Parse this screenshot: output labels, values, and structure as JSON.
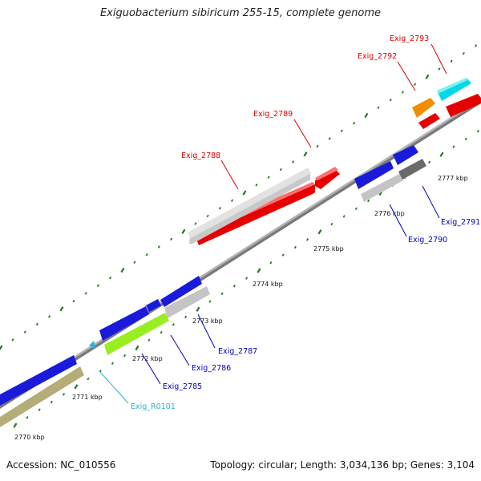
{
  "title": "Exiguobacterium sibiricum 255-15, complete genome",
  "footer": {
    "accession": "Accession: NC_010556",
    "summary": "Topology: circular; Length: 3,034,136 bp; Genes: 3,104"
  },
  "colors": {
    "backbone": "#8c8c8c",
    "tick": "#1f7a1f",
    "red_label": "#e00000",
    "blue_label": "#0000c0",
    "cyan_label": "#2ab0d0"
  },
  "scale_labels": [
    "2770 kbp",
    "2771 kbp",
    "2772 kbp",
    "2773 kbp",
    "2774 kbp",
    "2775 kbp",
    "2776 kbp",
    "2777 kbp"
  ],
  "genes": [
    {
      "id": "Exig_2788",
      "color": "red"
    },
    {
      "id": "Exig_2789",
      "color": "red"
    },
    {
      "id": "Exig_2792",
      "color": "red"
    },
    {
      "id": "Exig_2793",
      "color": "red"
    },
    {
      "id": "Exig_2791",
      "color": "blue"
    },
    {
      "id": "Exig_2790",
      "color": "blue"
    },
    {
      "id": "Exig_2787",
      "color": "blue"
    },
    {
      "id": "Exig_2786",
      "color": "blue"
    },
    {
      "id": "Exig_2785",
      "color": "blue"
    },
    {
      "id": "Exig_R0101",
      "color": "cyan"
    }
  ]
}
